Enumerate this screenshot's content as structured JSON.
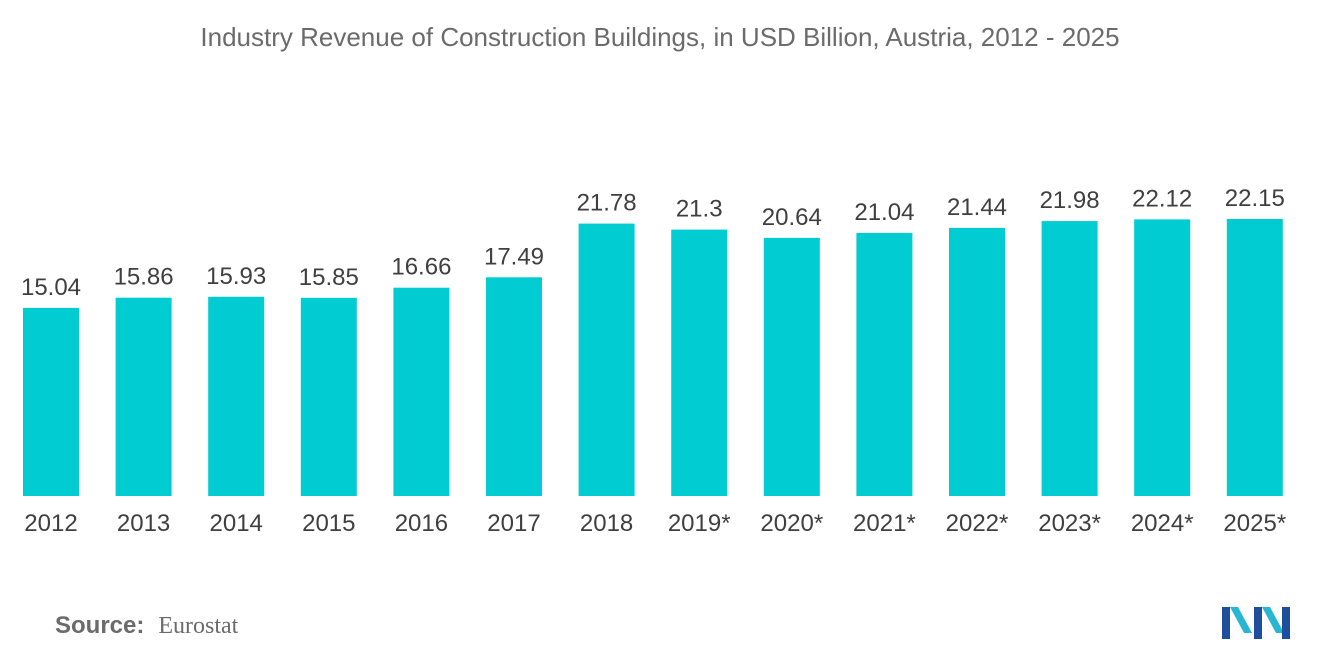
{
  "chart_data": {
    "type": "bar",
    "title": "Industry Revenue of Construction Buildings, in USD Billion,  Austria, 2012 - 2025",
    "xlabel": "",
    "ylabel": "",
    "categories": [
      "2012",
      "2013",
      "2014",
      "2015",
      "2016",
      "2017",
      "2018",
      "2019*",
      "2020*",
      "2021*",
      "2022*",
      "2023*",
      "2024*",
      "2025*"
    ],
    "values": [
      15.04,
      15.86,
      15.93,
      15.85,
      16.66,
      17.49,
      21.78,
      21.3,
      20.64,
      21.04,
      21.44,
      21.98,
      22.12,
      22.15
    ],
    "value_labels": [
      "15.04",
      "15.86",
      "15.93",
      "15.85",
      "16.66",
      "17.49",
      "21.78",
      "21.3",
      "20.64",
      "21.04",
      "21.44",
      "21.98",
      "22.12",
      "22.15"
    ],
    "ylim": [
      0,
      22.15
    ],
    "grid": false,
    "bar_color": "#00CCD1"
  },
  "source": {
    "label": "Source:",
    "value": "Eurostat"
  },
  "logo": {
    "icon": "mordor-intelligence-logo-icon",
    "colors": [
      "#1f4e9c",
      "#27b7d3"
    ]
  }
}
